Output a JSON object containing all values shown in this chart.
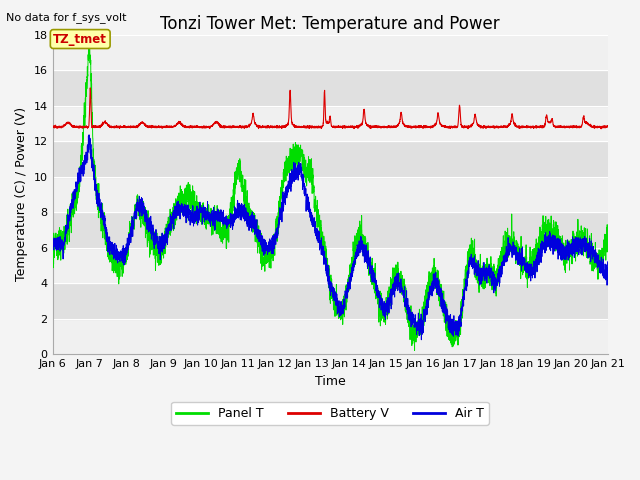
{
  "title": "Tonzi Tower Met: Temperature and Power",
  "top_left_note": "No data for f_sys_volt",
  "annotation_label": "TZ_tmet",
  "xlabel": "Time",
  "ylabel": "Temperature (C) / Power (V)",
  "xlim": [
    0,
    15
  ],
  "ylim": [
    0,
    18
  ],
  "yticks": [
    0,
    2,
    4,
    6,
    8,
    10,
    12,
    14,
    16,
    18
  ],
  "xtick_labels": [
    "Jan 6",
    "Jan 7",
    "Jan 8",
    "Jan 9",
    "Jan 10",
    "Jan 11",
    "Jan 12",
    "Jan 13",
    "Jan 14",
    "Jan 15",
    "Jan 16",
    "Jan 17",
    "Jan 18",
    "Jan 19",
    "Jan 20",
    "Jan 21"
  ],
  "panel_color": "#00dd00",
  "battery_color": "#dd0000",
  "air_color": "#0000dd",
  "fig_facecolor": "#f4f4f4",
  "plot_bg_light": "#f0f0f0",
  "plot_bg_dark": "#e0e0e0",
  "grid_color": "#ffffff",
  "legend_labels": [
    "Panel T",
    "Battery V",
    "Air T"
  ],
  "title_fontsize": 12,
  "axis_label_fontsize": 9,
  "tick_fontsize": 8,
  "note_fontsize": 8
}
